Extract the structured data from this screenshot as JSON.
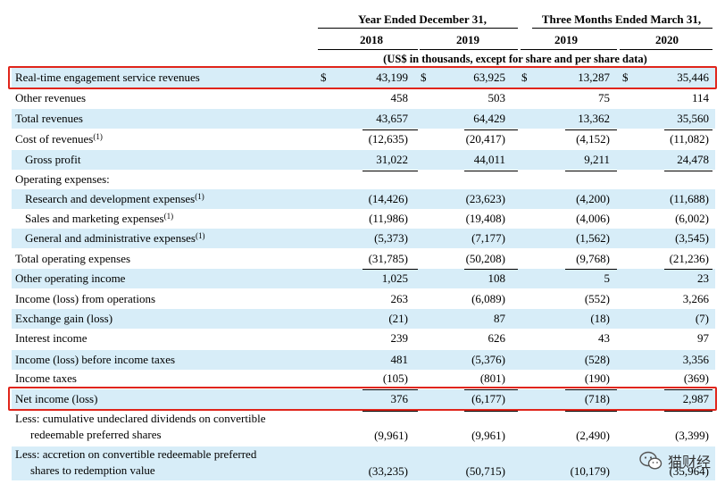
{
  "header": {
    "group1": "Year Ended December 31,",
    "group2": "Three Months Ended March 31,",
    "years": [
      "2018",
      "2019",
      "2019",
      "2020"
    ],
    "units_note": "(US$ in thousands, except for share and per share data)"
  },
  "rows": [
    {
      "label": "Real-time engagement service revenues",
      "values": [
        "43,199",
        "63,925",
        "13,287",
        "35,446"
      ],
      "currency": "$"
    },
    {
      "label": "Other revenues",
      "values": [
        "458",
        "503",
        "75",
        "114"
      ]
    },
    {
      "label": "Total revenues",
      "values": [
        "43,657",
        "64,429",
        "13,362",
        "35,560"
      ]
    },
    {
      "label": "Cost of revenues",
      "note": "(1)",
      "values": [
        "(12,635)",
        "(20,417)",
        "(4,152)",
        "(11,082)"
      ]
    },
    {
      "label": "Gross profit",
      "values": [
        "31,022",
        "44,011",
        "9,211",
        "24,478"
      ]
    },
    {
      "label": "Operating expenses:",
      "values": [
        "",
        "",
        "",
        ""
      ]
    },
    {
      "label": "Research and development expenses",
      "note": "(1)",
      "values": [
        "(14,426)",
        "(23,623)",
        "(4,200)",
        "(11,688)"
      ]
    },
    {
      "label": "Sales and marketing expenses",
      "note": "(1)",
      "values": [
        "(11,986)",
        "(19,408)",
        "(4,006)",
        "(6,002)"
      ]
    },
    {
      "label": "General and administrative expenses",
      "note": "(1)",
      "values": [
        "(5,373)",
        "(7,177)",
        "(1,562)",
        "(3,545)"
      ]
    },
    {
      "label": "Total operating expenses",
      "values": [
        "(31,785)",
        "(50,208)",
        "(9,768)",
        "(21,236)"
      ]
    },
    {
      "label": "Other operating income",
      "values": [
        "1,025",
        "108",
        "5",
        "23"
      ]
    },
    {
      "label": "Income (loss) from operations",
      "values": [
        "263",
        "(6,089)",
        "(552)",
        "3,266"
      ]
    },
    {
      "label": "Exchange gain (loss)",
      "values": [
        "(21)",
        "87",
        "(18)",
        "(7)"
      ]
    },
    {
      "label": "Interest income",
      "values": [
        "239",
        "626",
        "43",
        "97"
      ]
    },
    {
      "label": "Income (loss) before income taxes",
      "values": [
        "481",
        "(5,376)",
        "(528)",
        "3,356"
      ]
    },
    {
      "label": "Income taxes",
      "values": [
        "(105)",
        "(801)",
        "(190)",
        "(369)"
      ]
    },
    {
      "label": "Net income (loss)",
      "values": [
        "376",
        "(6,177)",
        "(718)",
        "2,987"
      ]
    },
    {
      "label_line1": "Less: cumulative undeclared dividends on convertible",
      "label_line2": "redeemable preferred shares",
      "values": [
        "(9,961)",
        "(9,961)",
        "(2,490)",
        "(3,399)"
      ]
    },
    {
      "label_line1": "Less: accretion on convertible redeemable preferred",
      "label_line2": "shares to redemption value",
      "values": [
        "(33,235)",
        "(50,715)",
        "(10,179)",
        "(35,964)"
      ]
    }
  ],
  "colors": {
    "highlight_box": "#e0251b",
    "row_shade": "#d7edf8"
  },
  "watermark": {
    "text": "猫财经",
    "icon": "wechat-icon"
  }
}
